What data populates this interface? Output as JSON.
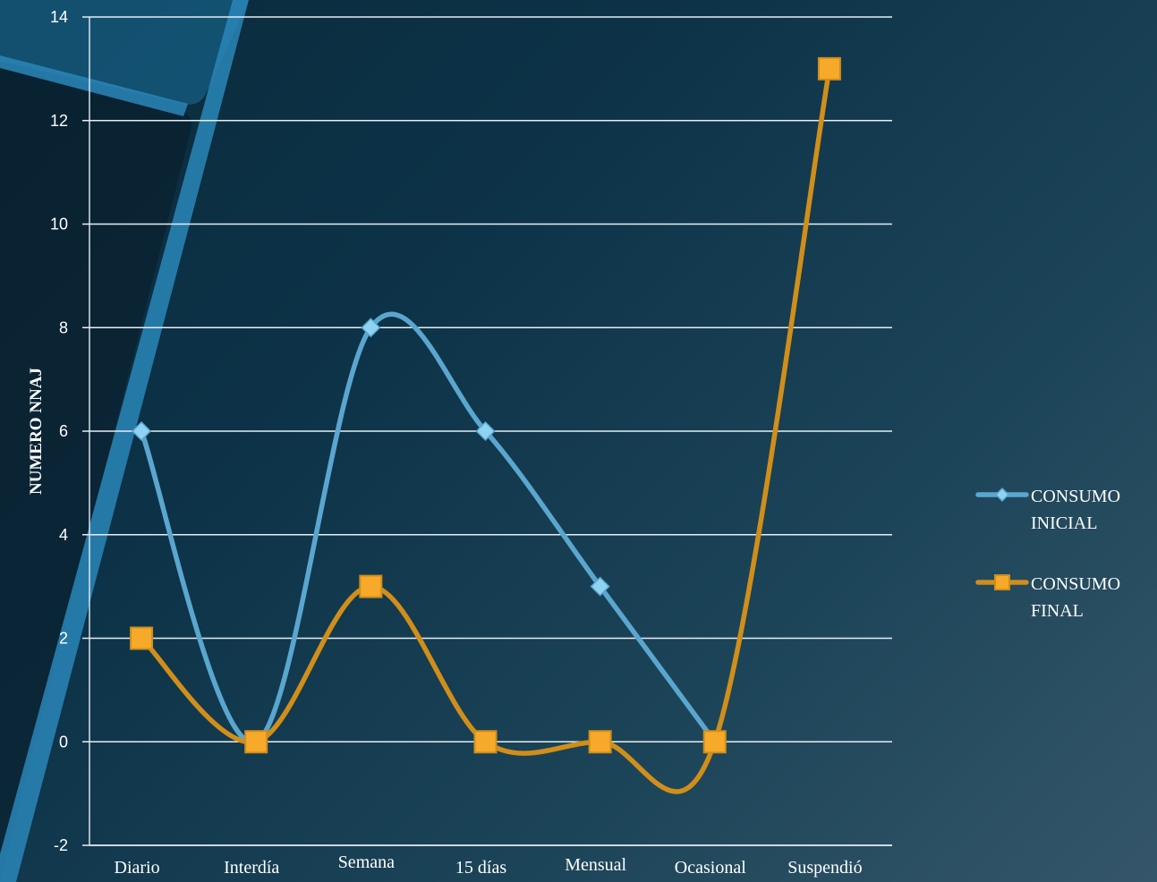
{
  "chart_data": {
    "type": "line",
    "title": "",
    "xlabel": "",
    "ylabel": "NUMERO NNAJ",
    "categories": [
      "Diario",
      "Interdía",
      "Semana",
      "15 días",
      "Mensual",
      "Ocasional",
      "Suspendió"
    ],
    "ylim": [
      -2,
      14
    ],
    "yticks": [
      "-2",
      "0",
      "2",
      "4",
      "6",
      "8",
      "10",
      "12",
      "14"
    ],
    "grid": true,
    "smooth": true,
    "legend_position": "right",
    "series": [
      {
        "name": "CONSUMO INICIAL",
        "name_lines": [
          "CONSUMO",
          "INICIAL"
        ],
        "values": [
          6,
          0,
          8,
          6,
          3,
          0,
          null
        ],
        "color": "#5aa6cf",
        "marker": "diamond",
        "marker_color": "#8fd3f2"
      },
      {
        "name": "CONSUMO FINAL",
        "name_lines": [
          "CONSUMO",
          "FINAL"
        ],
        "values": [
          2,
          0,
          3,
          0,
          0,
          0,
          13
        ],
        "color": "#d08e1a",
        "marker": "square",
        "marker_color": "#f7a929"
      }
    ]
  }
}
